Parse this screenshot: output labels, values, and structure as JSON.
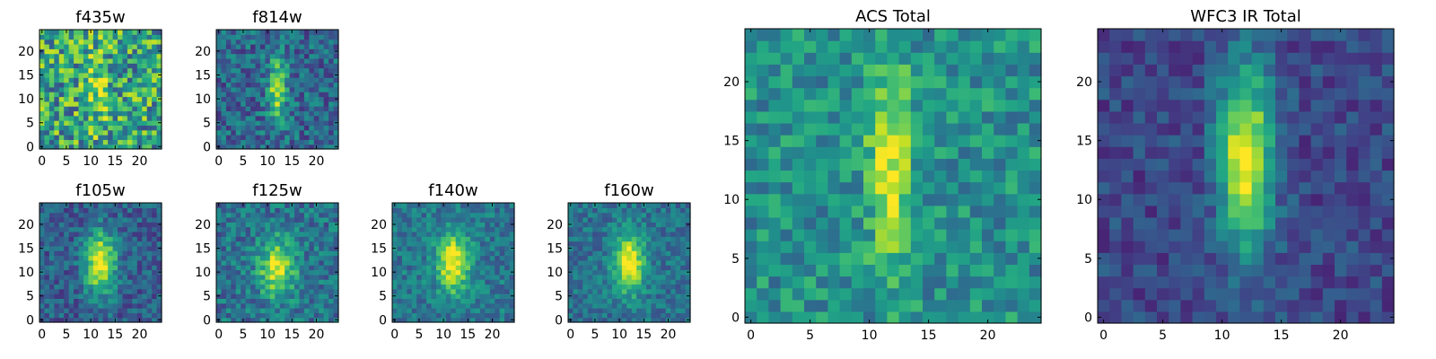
{
  "figure": {
    "colormap": "viridis",
    "tick_color": "#000000",
    "background": "#ffffff"
  },
  "chart_data": [
    {
      "id": "f435w",
      "type": "heatmap",
      "title": "f435w",
      "grid": false,
      "xlim": [
        -0.5,
        24.5
      ],
      "ylim": [
        -0.5,
        24.5
      ],
      "xticks": [
        "0",
        "5",
        "10",
        "15",
        "20"
      ],
      "yticks": [
        "0",
        "5",
        "10",
        "15",
        "20"
      ],
      "values": "25x25 noisy pixel grid, high noise, faint vertical source near x=11-13, y=5-20"
    },
    {
      "id": "f814w",
      "type": "heatmap",
      "title": "f814w",
      "grid": false,
      "xlim": [
        -0.5,
        24.5
      ],
      "ylim": [
        -0.5,
        24.5
      ],
      "xticks": [
        "0",
        "5",
        "10",
        "15",
        "20"
      ],
      "yticks": [
        "0",
        "5",
        "10",
        "15",
        "20"
      ],
      "values": "25x25 pixel grid, elongated bright source centered near x=12, y=12"
    },
    {
      "id": "f105w",
      "type": "heatmap",
      "title": "f105w",
      "grid": false,
      "xlim": [
        -0.5,
        24.5
      ],
      "ylim": [
        -0.5,
        24.5
      ],
      "xticks": [
        "0",
        "5",
        "10",
        "15",
        "20"
      ],
      "yticks": [
        "0",
        "5",
        "10",
        "15",
        "20"
      ],
      "values": "25x25 pixel grid, bright source centered near x=12, y=12"
    },
    {
      "id": "f125w",
      "type": "heatmap",
      "title": "f125w",
      "grid": false,
      "xlim": [
        -0.5,
        24.5
      ],
      "ylim": [
        -0.5,
        24.5
      ],
      "xticks": [
        "0",
        "5",
        "10",
        "15",
        "20"
      ],
      "yticks": [
        "0",
        "5",
        "10",
        "15",
        "20"
      ],
      "values": "25x25 pixel grid, bright source centered near x=12, y=11"
    },
    {
      "id": "f140w",
      "type": "heatmap",
      "title": "f140w",
      "grid": false,
      "xlim": [
        -0.5,
        24.5
      ],
      "ylim": [
        -0.5,
        24.5
      ],
      "xticks": [
        "0",
        "5",
        "10",
        "15",
        "20"
      ],
      "yticks": [
        "0",
        "5",
        "10",
        "15",
        "20"
      ],
      "values": "25x25 pixel grid, bright source centered near x=12, y=12"
    },
    {
      "id": "f160w",
      "type": "heatmap",
      "title": "f160w",
      "grid": false,
      "xlim": [
        -0.5,
        24.5
      ],
      "ylim": [
        -0.5,
        24.5
      ],
      "xticks": [
        "0",
        "5",
        "10",
        "15",
        "20"
      ],
      "yticks": [
        "0",
        "5",
        "10",
        "15",
        "20"
      ],
      "values": "25x25 pixel grid, bright source centered near x=12, y=12"
    },
    {
      "id": "acs_total",
      "type": "heatmap",
      "title": "ACS Total",
      "grid": false,
      "xlim": [
        -0.5,
        24.5
      ],
      "ylim": [
        -0.5,
        24.5
      ],
      "xticks": [
        "0",
        "5",
        "10",
        "15",
        "20"
      ],
      "yticks": [
        "0",
        "5",
        "10",
        "15",
        "20"
      ],
      "values": "25x25 pixel grid, bright vertical source x=10-13, y=7-20"
    },
    {
      "id": "wfc3_ir_total",
      "type": "heatmap",
      "title": "WFC3 IR Total",
      "grid": false,
      "xlim": [
        -0.5,
        24.5
      ],
      "ylim": [
        -0.5,
        24.5
      ],
      "xticks": [
        "0",
        "5",
        "10",
        "15",
        "20"
      ],
      "yticks": [
        "0",
        "5",
        "10",
        "15",
        "20"
      ],
      "values": "25x25 pixel grid, bright vertical source x=10-14, y=8-20"
    }
  ]
}
